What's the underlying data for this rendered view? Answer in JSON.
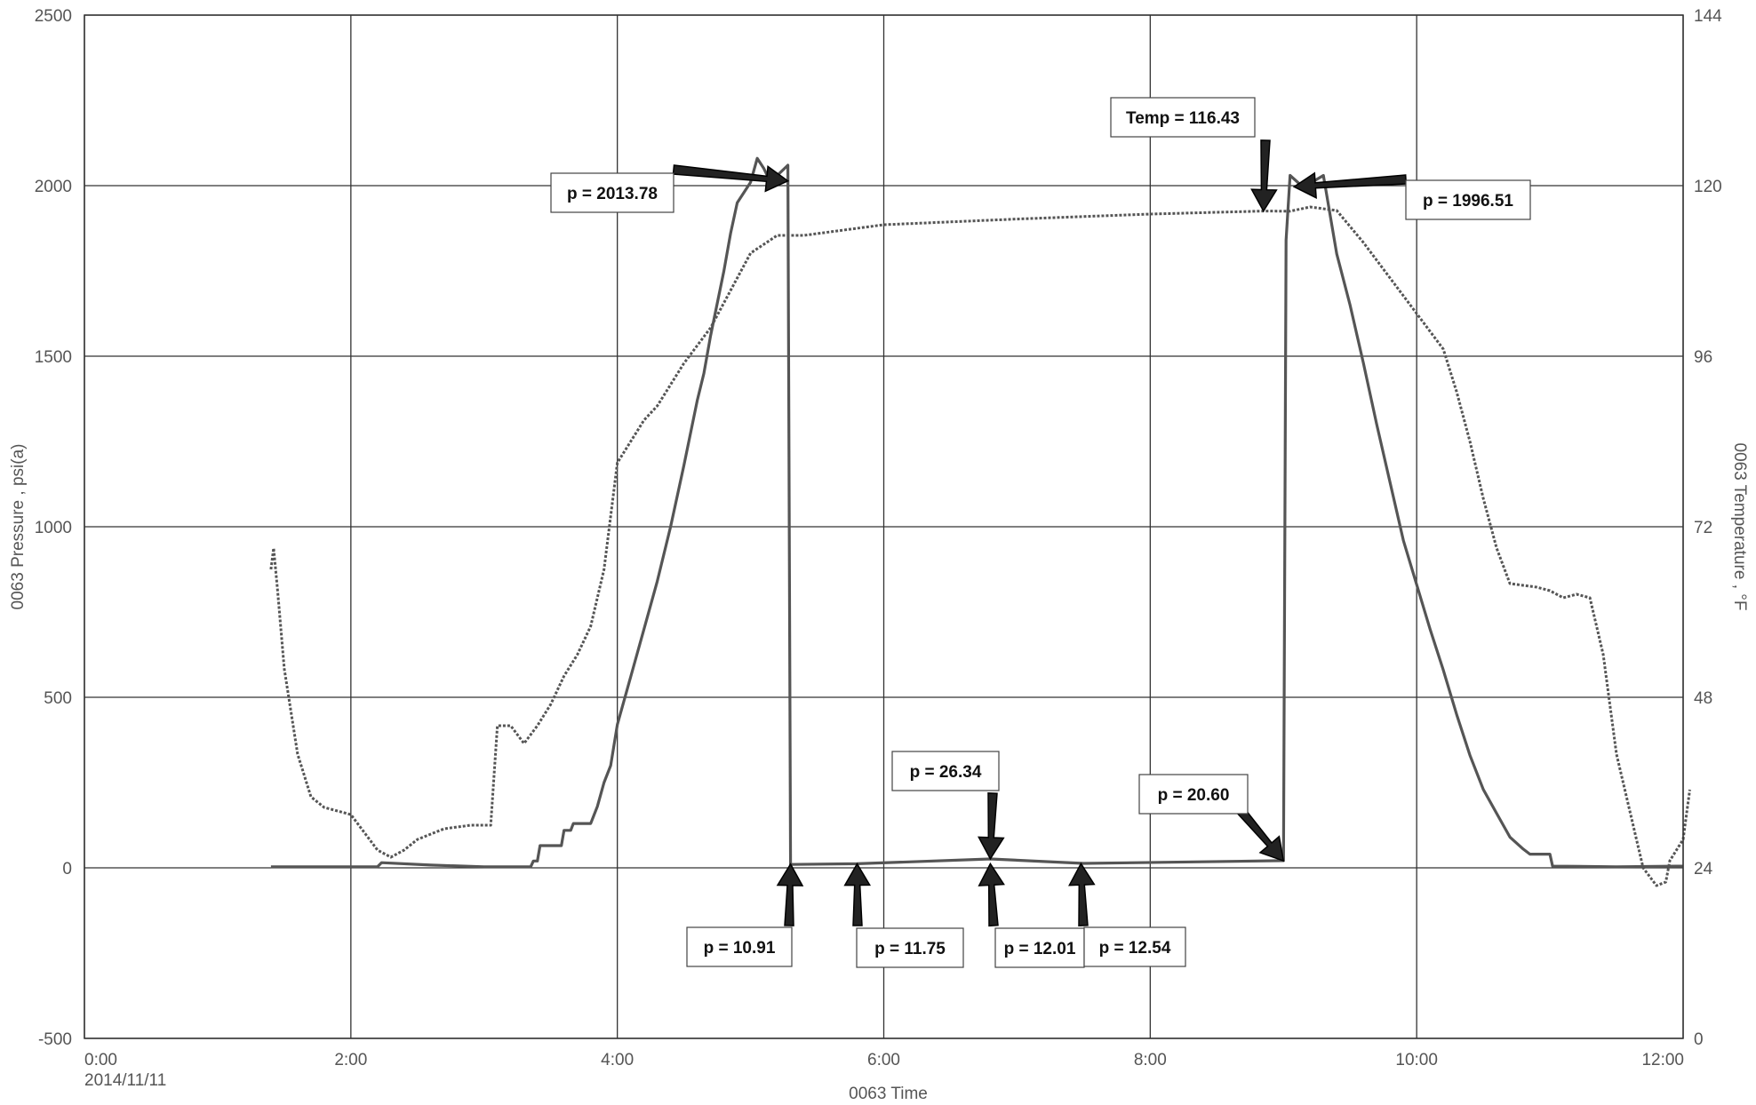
{
  "chart_data": {
    "type": "line",
    "title": "",
    "xlabel": "0063 Time",
    "ylabel_left": "0063 Pressure , psi(a)",
    "ylabel_right": "0063 Temperature , °F",
    "x_unit": "hours",
    "xlim": [
      0,
      12
    ],
    "ylim_left": [
      -500,
      2500
    ],
    "ylim_right": [
      0,
      144
    ],
    "grid": true,
    "x_ticks": [
      {
        "value": 0,
        "label": "0:00",
        "sublabel": "2014/11/11"
      },
      {
        "value": 2,
        "label": "2:00"
      },
      {
        "value": 4,
        "label": "4:00"
      },
      {
        "value": 6,
        "label": "6:00"
      },
      {
        "value": 8,
        "label": "8:00"
      },
      {
        "value": 10,
        "label": "10:00"
      },
      {
        "value": 12,
        "label": "12:00"
      }
    ],
    "y_left_ticks": [
      {
        "value": -500,
        "label": "-500"
      },
      {
        "value": 0,
        "label": "0"
      },
      {
        "value": 500,
        "label": "500"
      },
      {
        "value": 1000,
        "label": "1000"
      },
      {
        "value": 1500,
        "label": "1500"
      },
      {
        "value": 2000,
        "label": "2000"
      },
      {
        "value": 2500,
        "label": "2500"
      }
    ],
    "y_right_ticks": [
      {
        "value": 0,
        "label": "0"
      },
      {
        "value": 24,
        "label": "24"
      },
      {
        "value": 48,
        "label": "48"
      },
      {
        "value": 72,
        "label": "72"
      },
      {
        "value": 96,
        "label": "96"
      },
      {
        "value": 120,
        "label": "120"
      },
      {
        "value": 144,
        "label": "144"
      }
    ],
    "series": [
      {
        "axis": "left",
        "color": "#555555",
        "style": "solid",
        "points": [
          [
            1.4,
            3
          ],
          [
            2.2,
            3
          ],
          [
            2.23,
            15
          ],
          [
            2.6,
            8
          ],
          [
            3.0,
            3
          ],
          [
            3.35,
            3
          ],
          [
            3.37,
            20
          ],
          [
            3.4,
            20
          ],
          [
            3.42,
            65
          ],
          [
            3.58,
            65
          ],
          [
            3.6,
            110
          ],
          [
            3.65,
            110
          ],
          [
            3.67,
            130
          ],
          [
            3.8,
            130
          ],
          [
            3.85,
            180
          ],
          [
            3.9,
            250
          ],
          [
            3.95,
            300
          ],
          [
            4.0,
            420
          ],
          [
            4.1,
            560
          ],
          [
            4.2,
            700
          ],
          [
            4.3,
            840
          ],
          [
            4.4,
            1000
          ],
          [
            4.5,
            1180
          ],
          [
            4.6,
            1370
          ],
          [
            4.65,
            1450
          ],
          [
            4.7,
            1560
          ],
          [
            4.8,
            1750
          ],
          [
            4.85,
            1860
          ],
          [
            4.9,
            1950
          ],
          [
            5.0,
            2010
          ],
          [
            5.05,
            2080
          ],
          [
            5.1,
            2050
          ],
          [
            5.15,
            2010
          ],
          [
            5.2,
            2030
          ],
          [
            5.28,
            2060
          ],
          [
            5.3,
            5
          ],
          [
            5.3,
            10
          ],
          [
            5.8,
            12
          ],
          [
            6.8,
            26
          ],
          [
            7.5,
            13
          ],
          [
            9.0,
            21
          ],
          [
            9.02,
            1840
          ],
          [
            9.05,
            2030
          ],
          [
            9.15,
            1995
          ],
          [
            9.3,
            2030
          ],
          [
            9.4,
            1800
          ],
          [
            9.5,
            1650
          ],
          [
            9.6,
            1480
          ],
          [
            9.7,
            1300
          ],
          [
            9.8,
            1130
          ],
          [
            9.9,
            960
          ],
          [
            10.0,
            830
          ],
          [
            10.1,
            700
          ],
          [
            10.2,
            580
          ],
          [
            10.3,
            450
          ],
          [
            10.4,
            330
          ],
          [
            10.5,
            230
          ],
          [
            10.6,
            160
          ],
          [
            10.7,
            90
          ],
          [
            10.8,
            55
          ],
          [
            10.85,
            40
          ],
          [
            11.0,
            40
          ],
          [
            11.02,
            5
          ],
          [
            11.5,
            3
          ],
          [
            11.95,
            5
          ],
          [
            12.0,
            5
          ]
        ]
      },
      {
        "axis": "right",
        "color": "#555555",
        "style": "dotted",
        "points": [
          [
            1.4,
            66
          ],
          [
            1.42,
            69
          ],
          [
            1.45,
            63
          ],
          [
            1.5,
            52
          ],
          [
            1.6,
            40
          ],
          [
            1.7,
            34
          ],
          [
            1.8,
            32.5
          ],
          [
            1.9,
            32
          ],
          [
            2.0,
            31.5
          ],
          [
            2.1,
            29
          ],
          [
            2.2,
            26.5
          ],
          [
            2.3,
            25.5
          ],
          [
            2.4,
            26.5
          ],
          [
            2.5,
            28
          ],
          [
            2.7,
            29.5
          ],
          [
            2.9,
            30
          ],
          [
            3.05,
            30
          ],
          [
            3.1,
            44
          ],
          [
            3.2,
            44
          ],
          [
            3.3,
            41.5
          ],
          [
            3.4,
            44
          ],
          [
            3.5,
            47
          ],
          [
            3.6,
            51
          ],
          [
            3.7,
            54
          ],
          [
            3.8,
            58
          ],
          [
            3.9,
            66
          ],
          [
            4.0,
            81
          ],
          [
            4.1,
            84
          ],
          [
            4.2,
            87
          ],
          [
            4.3,
            89
          ],
          [
            4.5,
            95
          ],
          [
            4.7,
            100
          ],
          [
            4.9,
            107
          ],
          [
            5.0,
            110.5
          ],
          [
            5.2,
            113
          ],
          [
            5.4,
            113
          ],
          [
            5.6,
            113.5
          ],
          [
            6.0,
            114.5
          ],
          [
            7.0,
            115.3
          ],
          [
            8.0,
            116.0
          ],
          [
            8.85,
            116.43
          ],
          [
            9.05,
            116.4
          ],
          [
            9.2,
            117
          ],
          [
            9.4,
            116.5
          ],
          [
            9.6,
            112
          ],
          [
            9.8,
            107
          ],
          [
            10.0,
            102
          ],
          [
            10.2,
            97
          ],
          [
            10.3,
            91
          ],
          [
            10.4,
            84
          ],
          [
            10.5,
            76
          ],
          [
            10.6,
            69
          ],
          [
            10.7,
            64
          ],
          [
            10.9,
            63.5
          ],
          [
            11.0,
            63
          ],
          [
            11.1,
            62
          ],
          [
            11.2,
            62.5
          ],
          [
            11.3,
            62
          ],
          [
            11.4,
            54
          ],
          [
            11.5,
            40
          ],
          [
            11.6,
            32
          ],
          [
            11.7,
            24
          ],
          [
            11.8,
            21.5
          ],
          [
            11.87,
            22
          ],
          [
            11.9,
            25
          ],
          [
            12.0,
            28
          ],
          [
            12.05,
            35
          ]
        ]
      }
    ],
    "annotations": [
      {
        "text": "p = 2013.78",
        "x": 5.28,
        "y": 2013.78,
        "axis": "left"
      },
      {
        "text": "Temp = 116.43",
        "x": 8.85,
        "y": 116.43,
        "axis": "right"
      },
      {
        "text": "p = 1996.51",
        "x": 9.08,
        "y": 1996.51,
        "axis": "left"
      },
      {
        "text": "p = 26.34",
        "x": 6.8,
        "y": 26.34,
        "axis": "left"
      },
      {
        "text": "p = 20.60",
        "x": 9.0,
        "y": 20.6,
        "axis": "left"
      },
      {
        "text": "p = 10.91",
        "x": 5.3,
        "y": 10.91,
        "axis": "left"
      },
      {
        "text": "p = 11.75",
        "x": 5.8,
        "y": 11.75,
        "axis": "left"
      },
      {
        "text": "p = 12.01",
        "x": 6.8,
        "y": 12.01,
        "axis": "left"
      },
      {
        "text": "p = 12.54",
        "x": 7.48,
        "y": 12.54,
        "axis": "left"
      }
    ]
  }
}
